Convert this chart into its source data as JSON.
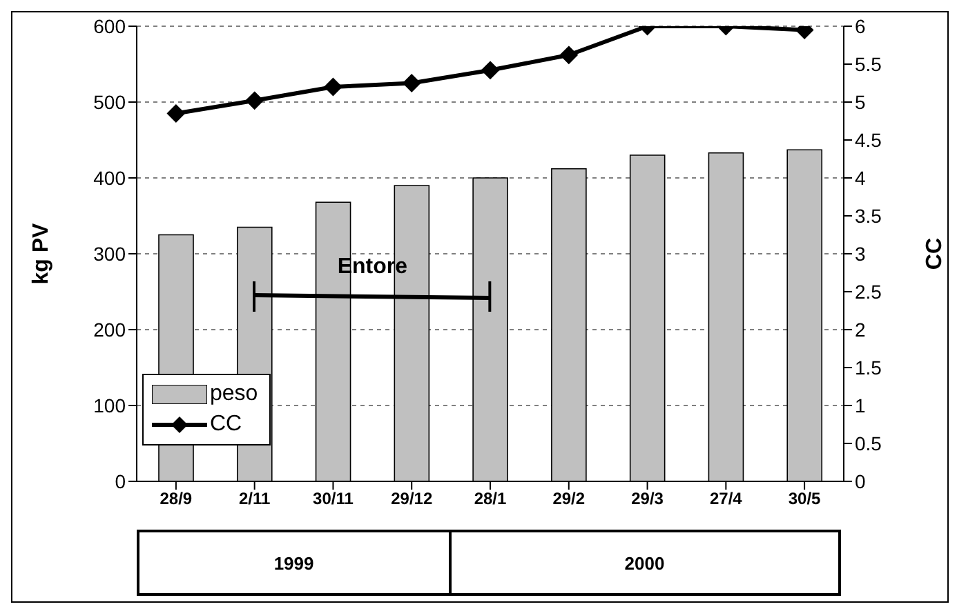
{
  "chart_data": {
    "type": "bar",
    "ylabel": "kg PV",
    "y2label": "CC",
    "categories": [
      "28/9",
      "2/11",
      "30/11",
      "29/12",
      "28/1",
      "29/2",
      "29/3",
      "27/4",
      "30/5"
    ],
    "series": [
      {
        "name": "peso",
        "color": "#c0c0c0",
        "values": [
          325,
          335,
          368,
          390,
          400,
          412,
          430,
          433,
          437
        ]
      },
      {
        "name": "CC",
        "type": "line",
        "axis": "y2",
        "color": "#000000",
        "marker": "diamond",
        "values": [
          4.85,
          5.02,
          5.2,
          5.25,
          5.42,
          5.62,
          6.0,
          6.0,
          5.95
        ]
      }
    ],
    "ylim": [
      0,
      600
    ],
    "yticks": [
      0,
      100,
      200,
      300,
      400,
      500,
      600
    ],
    "y2lim": [
      0,
      6
    ],
    "y2ticks": [
      0,
      0.5,
      1,
      1.5,
      2,
      2.5,
      3,
      3.5,
      4,
      4.5,
      5,
      5.5,
      6
    ],
    "annotations": [
      "Entore",
      "1999",
      "2000"
    ],
    "grid": "y",
    "legend": "bottom left"
  }
}
